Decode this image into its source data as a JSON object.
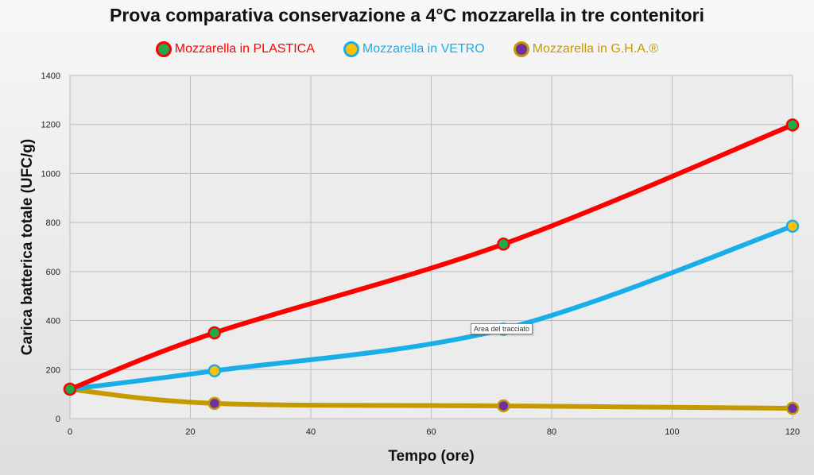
{
  "chart_data": {
    "type": "line",
    "title": "Prova comparativa conservazione a 4°C mozzarella in tre contenitori",
    "xlabel": "Tempo (ore)",
    "ylabel": "Carica batterica totale (UFC/g)",
    "xlim": [
      0,
      120
    ],
    "ylim": [
      0,
      1400
    ],
    "xticks": [
      "0",
      "20",
      "40",
      "60",
      "80",
      "100",
      "120"
    ],
    "yticks": [
      "0",
      "200",
      "400",
      "600",
      "800",
      "1000",
      "1200",
      "1400"
    ],
    "grid": true,
    "legend_position": "top",
    "series": [
      {
        "name": "Mozzarella in PLASTICA",
        "color": "#ff0000",
        "marker_color": "#22a84a",
        "x": [
          0,
          24,
          72,
          120
        ],
        "y": [
          120,
          350,
          712,
          1198
        ]
      },
      {
        "name": "Mozzarella in VETRO",
        "color": "#19aeea",
        "marker_color": "#ffc000",
        "x": [
          0,
          24,
          72,
          120
        ],
        "y": [
          120,
          195,
          365,
          785
        ]
      },
      {
        "name": "Mozzarella in G.H.A.®",
        "color": "#c49a00",
        "marker_color": "#7030a0",
        "x": [
          0,
          24,
          72,
          120
        ],
        "y": [
          120,
          62,
          52,
          42
        ]
      }
    ]
  },
  "tooltip": {
    "text": "Area del tracciato"
  }
}
